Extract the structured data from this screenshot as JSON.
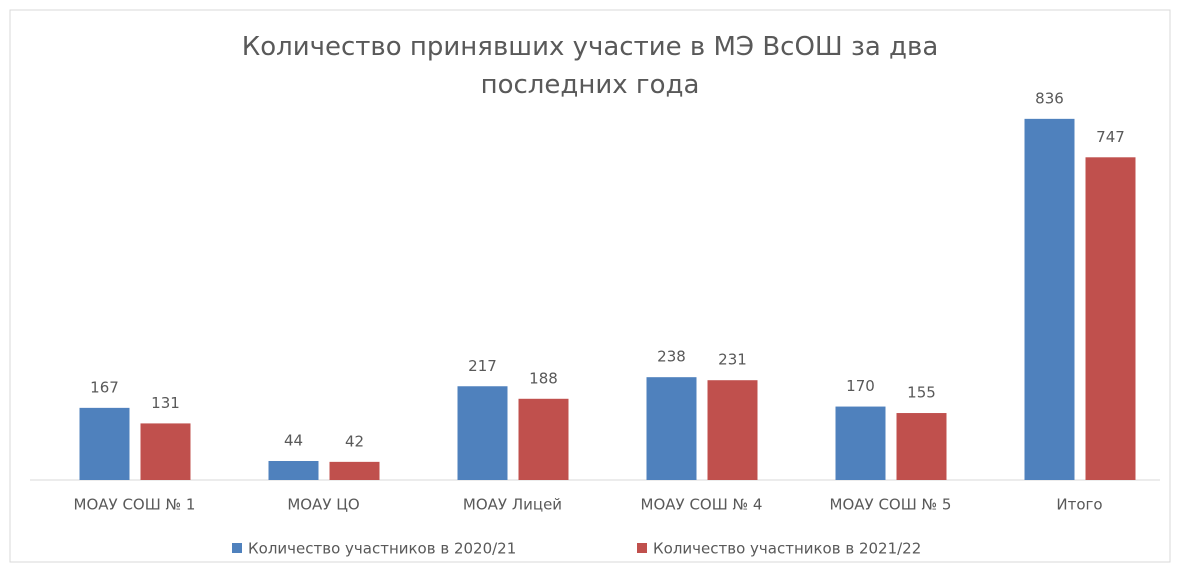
{
  "chart_data": {
    "type": "bar",
    "title": "Количество принявших участие в МЭ ВсОШ за два последних года",
    "categories": [
      "МОАУ СОШ № 1",
      "МОАУ ЦО",
      "МОАУ Лицей",
      "МОАУ СОШ № 4",
      "МОАУ СОШ № 5",
      "Итого"
    ],
    "series": [
      {
        "name": "Количество участников в 2020/21",
        "color": "#4f81bd",
        "values": [
          167,
          44,
          217,
          238,
          170,
          836
        ]
      },
      {
        "name": "Количество участников в 2021/22",
        "color": "#c0504d",
        "values": [
          131,
          42,
          188,
          231,
          155,
          747
        ]
      }
    ],
    "legend": "bottom"
  }
}
